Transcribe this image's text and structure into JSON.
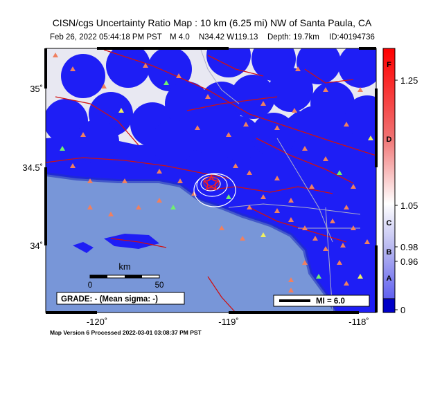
{
  "header": {
    "title": "CISN/cgs Uncertainty Ratio Map : 10 km (6.25 mi) NW of Santa Paula, CA",
    "date": "Feb 26, 2022 05:44:18 PM PST",
    "magnitude": "M 4.0",
    "location": "N34.42 W119.13",
    "depth": "Depth: 19.7km",
    "id": "ID:40194736"
  },
  "axes": {
    "latitude_labels": [
      "35˚",
      "34.5˚",
      "34˚"
    ],
    "longitude_labels": [
      "-120˚",
      "-119˚",
      "-118˚"
    ]
  },
  "scale_bar": {
    "unit": "km",
    "start": "0",
    "end": "50"
  },
  "grade_box": "GRADE: - (Mean sigma: -)",
  "mi_legend": "MI = 6.0",
  "colorbar": {
    "grades": [
      "F",
      "D",
      "C",
      "B",
      "A"
    ],
    "ratio_labels": [
      "1.25",
      "1.05",
      "0.98",
      "0.96"
    ],
    "bottom_label": "0"
  },
  "footer": "Map Version 6 Processed 2022-03-01 03:08:37 PM PST"
}
